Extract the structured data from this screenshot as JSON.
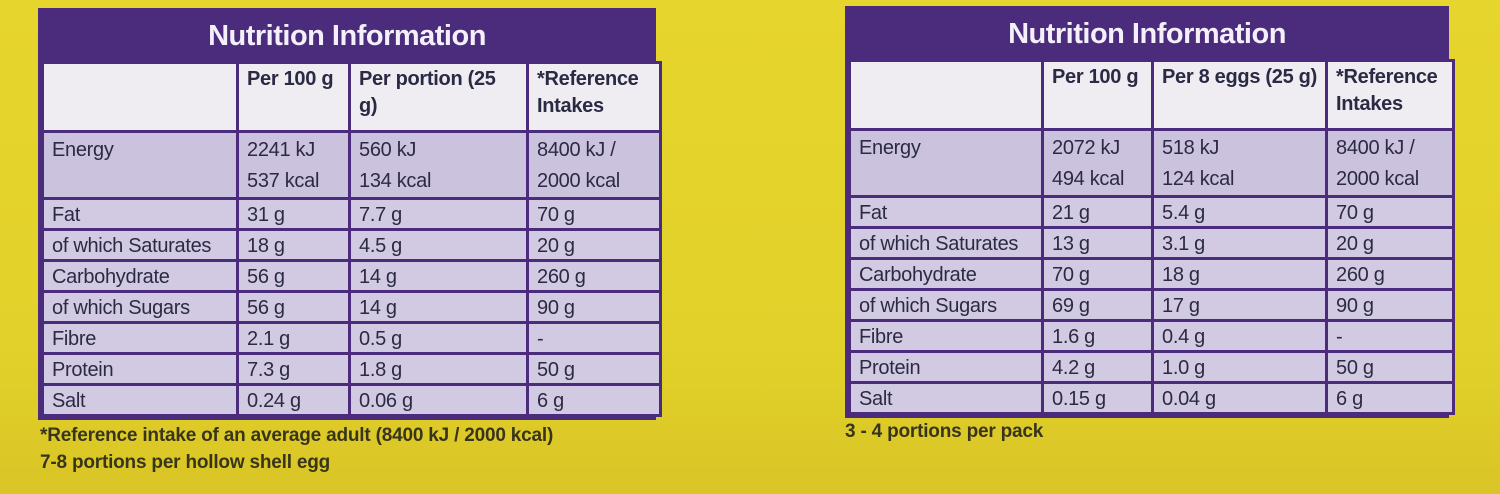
{
  "tables": [
    {
      "title": "Nutrition Information",
      "header": [
        "",
        "Per 100 g",
        "Per portion (25 g)",
        "*Reference\nIntakes"
      ],
      "rows": [
        [
          "Energy",
          "2241 kJ\n537 kcal",
          "560 kJ\n134 kcal",
          "8400 kJ /\n2000 kcal"
        ],
        [
          "Fat",
          "31 g",
          "7.7 g",
          "70 g"
        ],
        [
          "of which Saturates",
          "18 g",
          "4.5 g",
          "20 g"
        ],
        [
          "Carbohydrate",
          "56 g",
          "14 g",
          "260 g"
        ],
        [
          "of which Sugars",
          "56 g",
          "14 g",
          "90 g"
        ],
        [
          "Fibre",
          "2.1 g",
          "0.5 g",
          "-"
        ],
        [
          "Protein",
          "7.3 g",
          "1.8 g",
          "50 g"
        ],
        [
          "Salt",
          "0.24 g",
          "0.06 g",
          "6 g"
        ]
      ],
      "notes": [
        "*Reference intake of an average adult (8400 kJ / 2000 kcal)",
        "7-8 portions per hollow shell egg"
      ]
    },
    {
      "title": "Nutrition Information",
      "header": [
        "",
        "Per 100 g",
        "Per 8 eggs (25 g)",
        "*Reference\nIntakes"
      ],
      "rows": [
        [
          "Energy",
          "2072 kJ\n494 kcal",
          "518 kJ\n124 kcal",
          "8400 kJ /\n2000 kcal"
        ],
        [
          "Fat",
          "21 g",
          "5.4 g",
          "70 g"
        ],
        [
          "of which Saturates",
          "13 g",
          "3.1 g",
          "20 g"
        ],
        [
          "Carbohydrate",
          "70 g",
          "18 g",
          "260 g"
        ],
        [
          "of which Sugars",
          "69 g",
          "17 g",
          "90 g"
        ],
        [
          "Fibre",
          "1.6 g",
          "0.4 g",
          "-"
        ],
        [
          "Protein",
          "4.2 g",
          "1.0 g",
          "50 g"
        ],
        [
          "Salt",
          "0.15 g",
          "0.04 g",
          "6 g"
        ]
      ],
      "notes": [
        "3 - 4 portions per pack"
      ]
    }
  ]
}
